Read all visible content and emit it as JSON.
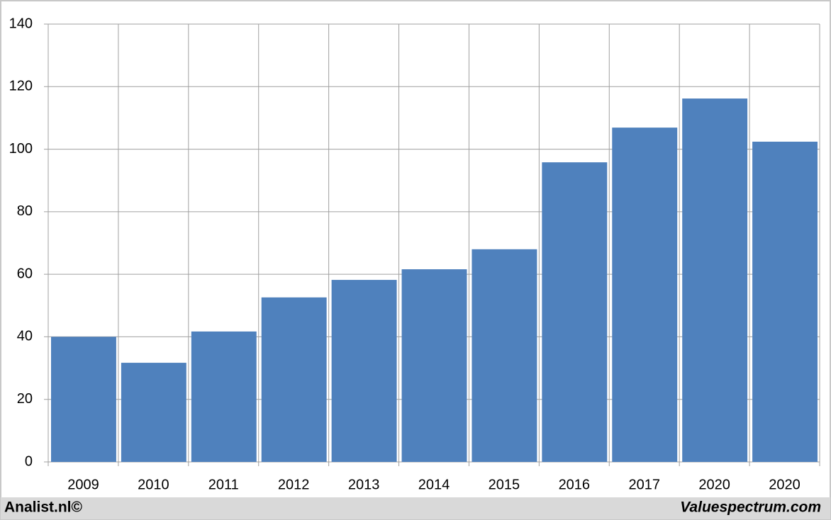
{
  "chart_data": {
    "type": "bar",
    "categories": [
      "2009",
      "2010",
      "2011",
      "2012",
      "2013",
      "2014",
      "2015",
      "2016",
      "2017",
      "2020",
      "2020"
    ],
    "values": [
      40,
      31.7,
      41.7,
      52.6,
      58.2,
      61.6,
      68,
      95.8,
      106.9,
      116.2,
      102.4
    ],
    "color": "#4f81bd",
    "ylim": [
      0,
      140
    ],
    "yticks": [
      0,
      20,
      40,
      60,
      80,
      100,
      120,
      140
    ],
    "grid": true
  },
  "footer": {
    "left": "Analist.nl©",
    "right": "Valuespectrum.com"
  }
}
